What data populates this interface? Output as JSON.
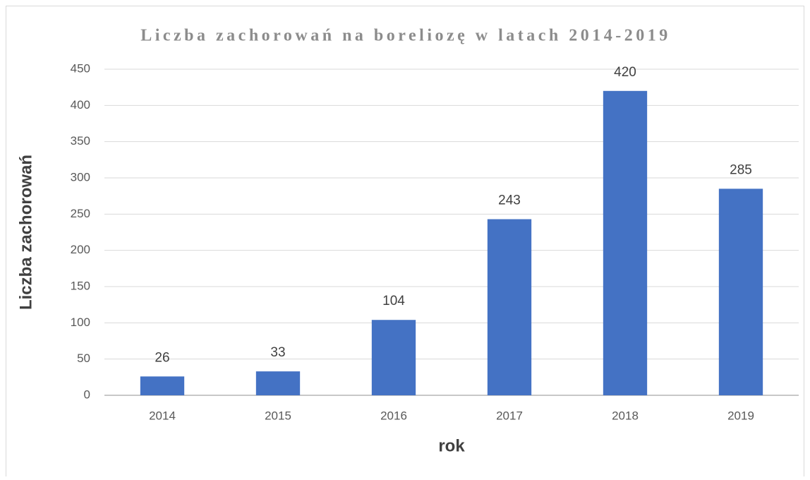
{
  "chart_data": {
    "type": "bar",
    "title": "Liczba zachorowań na boreliozę w latach 2014-2019",
    "x_label": "rok",
    "y_label": "Liczba zachorowań",
    "categories": [
      "2014",
      "2015",
      "2016",
      "2017",
      "2018",
      "2019"
    ],
    "values": [
      26,
      33,
      104,
      243,
      420,
      285
    ],
    "color": "#4472c4",
    "ylim": [
      0,
      450
    ],
    "yticks": [
      0,
      50,
      100,
      150,
      200,
      250,
      300,
      350,
      400,
      450
    ],
    "grid": true
  }
}
